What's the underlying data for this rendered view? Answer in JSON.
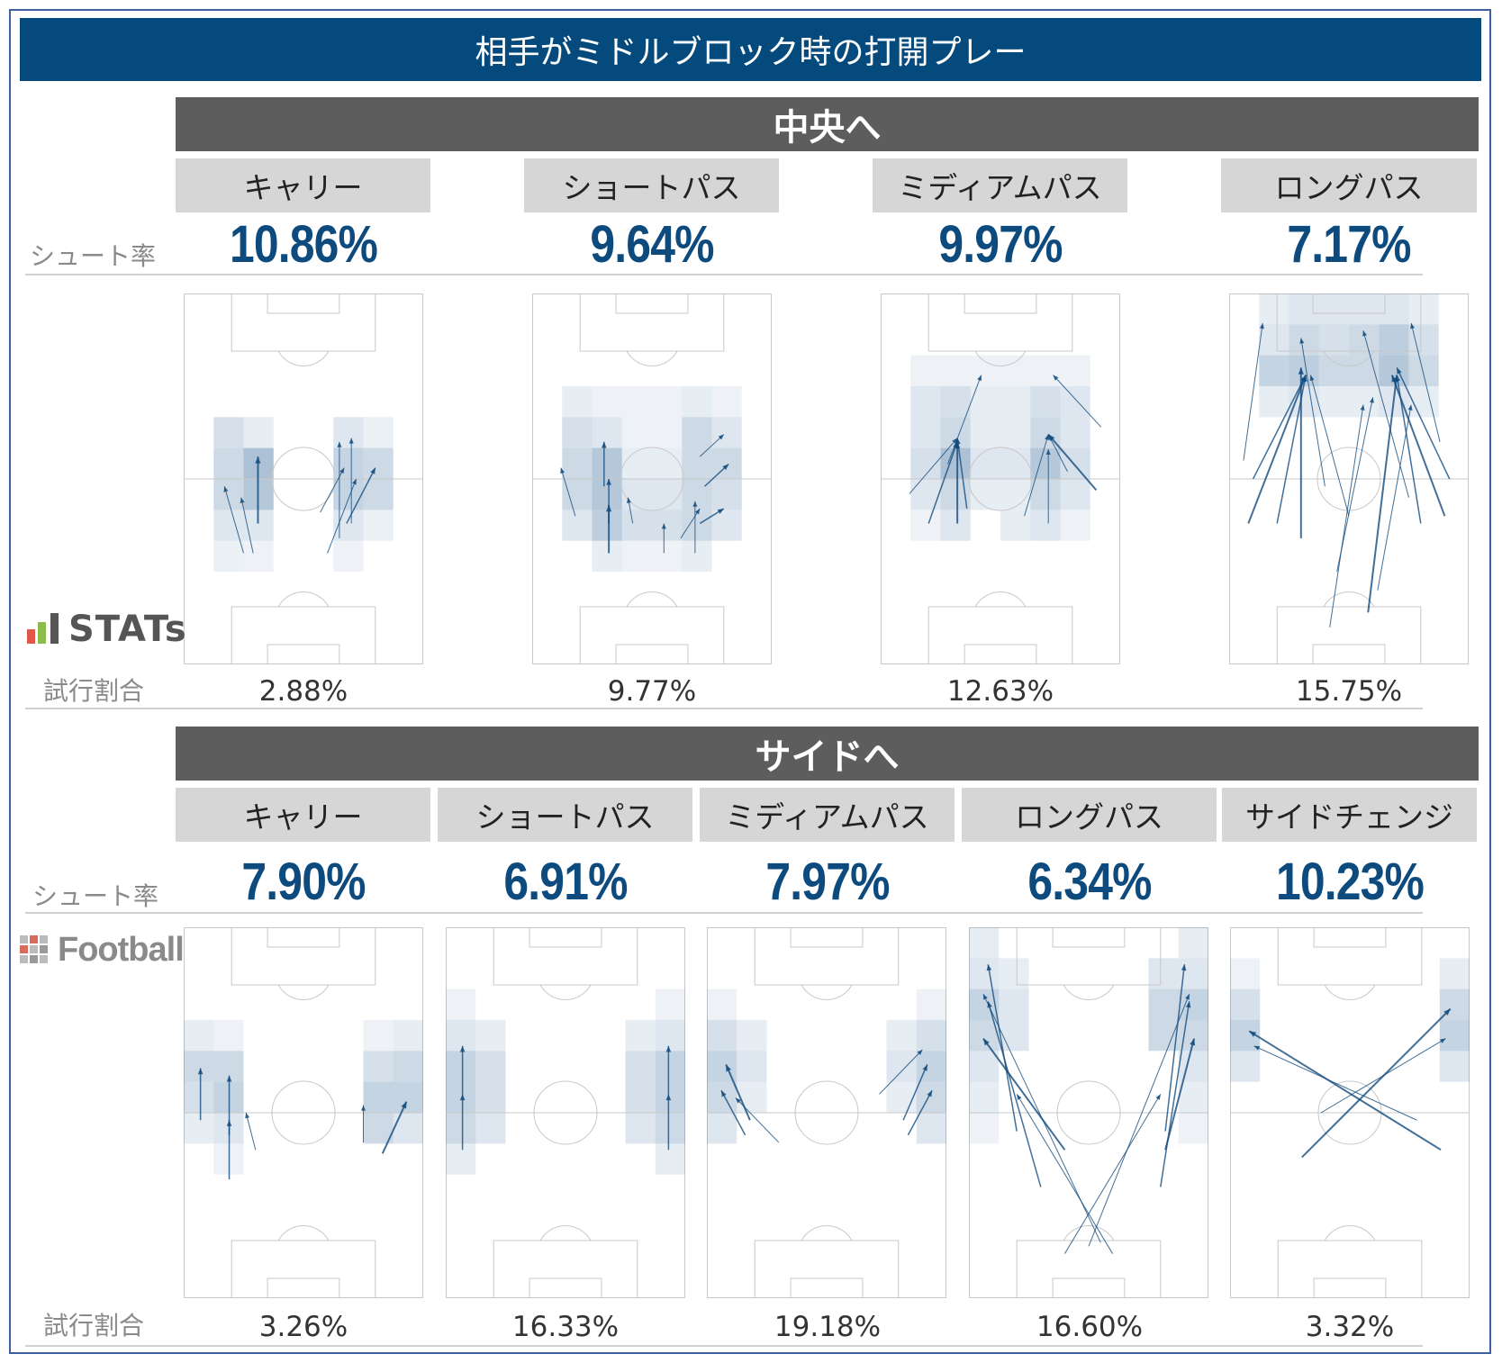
{
  "title": "相手がミドルブロック時の打開プレー",
  "labels": {
    "shot_rate": "シュート率",
    "attempt_ratio": "試行割合"
  },
  "logos": {
    "stats": "STATs",
    "football_lab": "Football LAB"
  },
  "colors": {
    "title_bg": "#044a7d",
    "section_bg": "#5d5d5d",
    "category_bg": "#d6d6d6",
    "rate_text": "#0d4a7d",
    "arrow": "#134b7d",
    "heat": "#5a84ad"
  },
  "sections": {
    "center": {
      "title": "中央へ",
      "items": [
        {
          "label": "キャリー",
          "shot_rate": "10.86%",
          "attempt_ratio": "2.88%"
        },
        {
          "label": "ショートパス",
          "shot_rate": "9.64%",
          "attempt_ratio": "9.77%"
        },
        {
          "label": "ミディアムパス",
          "shot_rate": "9.97%",
          "attempt_ratio": "12.63%"
        },
        {
          "label": "ロングパス",
          "shot_rate": "7.17%",
          "attempt_ratio": "15.75%"
        }
      ]
    },
    "side": {
      "title": "サイドへ",
      "items": [
        {
          "label": "キャリー",
          "shot_rate": "7.90%",
          "attempt_ratio": "3.26%"
        },
        {
          "label": "ショートパス",
          "shot_rate": "6.91%",
          "attempt_ratio": "16.33%"
        },
        {
          "label": "ミディアムパス",
          "shot_rate": "7.97%",
          "attempt_ratio": "19.18%"
        },
        {
          "label": "ロングパス",
          "shot_rate": "6.34%",
          "attempt_ratio": "16.60%"
        },
        {
          "label": "サイドチェンジ",
          "shot_rate": "10.23%",
          "attempt_ratio": "3.32%"
        }
      ]
    }
  },
  "chart_data": [
    {
      "type": "table",
      "title": "中央へ",
      "categories": [
        "キャリー",
        "ショートパス",
        "ミディアムパス",
        "ロングパス"
      ],
      "series": [
        {
          "name": "シュート率",
          "values": [
            10.86,
            9.64,
            9.97,
            7.17
          ]
        },
        {
          "name": "試行割合",
          "values": [
            2.88,
            9.77,
            12.63,
            15.75
          ]
        }
      ]
    },
    {
      "type": "table",
      "title": "サイドへ",
      "categories": [
        "キャリー",
        "ショートパス",
        "ミディアムパス",
        "ロングパス",
        "サイドチェンジ"
      ],
      "series": [
        {
          "name": "シュート率",
          "values": [
            7.9,
            6.91,
            7.97,
            6.34,
            10.23
          ]
        },
        {
          "name": "試行割合",
          "values": [
            3.26,
            16.33,
            19.18,
            16.6,
            3.32
          ]
        }
      ]
    }
  ]
}
